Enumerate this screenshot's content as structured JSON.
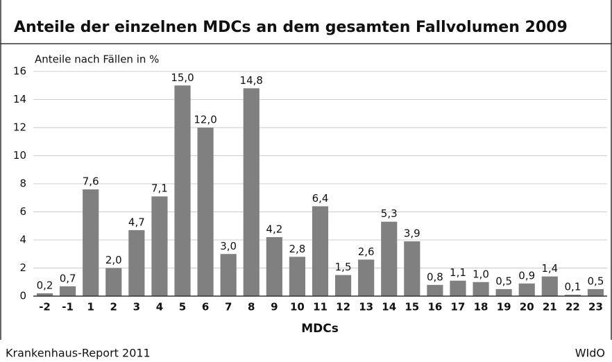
{
  "chart_data": {
    "type": "bar",
    "title": "Anteile der einzelnen MDCs an dem gesamten Fallvolumen 2009",
    "y_label": "Anteile nach Fällen in %",
    "x_label": "MDCs",
    "source": "Krankenhaus-Report 2011",
    "publisher": "WIdO",
    "categories": [
      "-2",
      "-1",
      "1",
      "2",
      "3",
      "4",
      "5",
      "6",
      "7",
      "8",
      "9",
      "10",
      "11",
      "12",
      "13",
      "14",
      "15",
      "16",
      "17",
      "18",
      "19",
      "20",
      "21",
      "22",
      "23"
    ],
    "values": [
      0.2,
      0.7,
      7.6,
      2.0,
      4.7,
      7.1,
      15.0,
      12.0,
      3.0,
      14.8,
      4.2,
      2.8,
      6.4,
      1.5,
      2.6,
      5.3,
      3.9,
      0.8,
      1.1,
      1.0,
      0.5,
      0.9,
      1.4,
      0.1,
      0.5
    ],
    "value_labels": [
      "0,2",
      "0,7",
      "7,6",
      "2,0",
      "4,7",
      "7,1",
      "15,0",
      "12,0",
      "3,0",
      "14,8",
      "4,2",
      "2,8",
      "6,4",
      "1,5",
      "2,6",
      "5,3",
      "3,9",
      "0,8",
      "1,1",
      "1,0",
      "0,5",
      "0,9",
      "1,4",
      "0,1",
      "0,5"
    ],
    "color": "#808080",
    "ylim": [
      0,
      16
    ],
    "yticks": [
      0,
      2,
      4,
      6,
      8,
      10,
      12,
      14,
      16
    ],
    "grid": true
  }
}
